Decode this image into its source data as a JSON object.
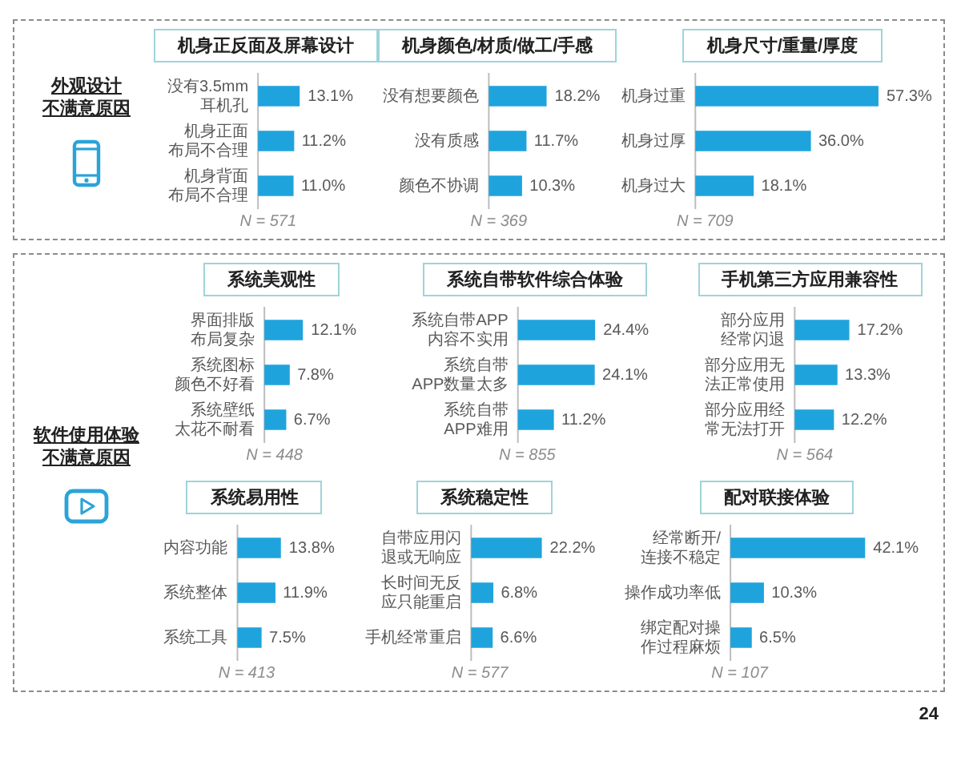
{
  "chart_data": [
    {
      "type": "other",
      "title": "外观设计不满意原因"
    },
    {
      "type": "bar",
      "orientation": "horizontal",
      "title": "机身正反面及屏幕设计",
      "categories": [
        "没有3.5mm耳机孔",
        "机身正面布局不合理",
        "机身背面布局不合理"
      ],
      "values": [
        13.1,
        11.2,
        11.0
      ],
      "value_labels": [
        "13.1%",
        "11.2%",
        "11.0%"
      ],
      "color": "#1fa3dd",
      "tick_labels": "y",
      "annotations": [
        "N = 571"
      ]
    },
    {
      "type": "bar",
      "orientation": "horizontal",
      "title": "机身颜色/材质/做工/手感",
      "categories": [
        "没有想要颜色",
        "没有质感",
        "颜色不协调"
      ],
      "values": [
        18.2,
        11.7,
        10.3
      ],
      "value_labels": [
        "18.2%",
        "11.7%",
        "10.3%"
      ],
      "color": "#1fa3dd",
      "tick_labels": "y",
      "annotations": [
        "N = 369"
      ]
    },
    {
      "type": "bar",
      "orientation": "horizontal",
      "title": "机身尺寸/重量/厚度",
      "categories": [
        "机身过重",
        "机身过厚",
        "机身过大"
      ],
      "values": [
        57.3,
        36.0,
        18.1
      ],
      "value_labels": [
        "57.3%",
        "36.0%",
        "18.1%"
      ],
      "color": "#1fa3dd",
      "tick_labels": "y",
      "annotations": [
        "N = 709"
      ]
    },
    {
      "type": "other",
      "title": "软件使用体验不满意原因"
    },
    {
      "type": "bar",
      "orientation": "horizontal",
      "title": "系统美观性",
      "categories": [
        "界面排版布局复杂",
        "系统图标颜色不好看",
        "系统壁纸太花不耐看"
      ],
      "values": [
        12.1,
        7.8,
        6.7
      ],
      "value_labels": [
        "12.1%",
        "7.8%",
        "6.7%"
      ],
      "color": "#1fa3dd",
      "tick_labels": "y",
      "annotations": [
        "N = 448"
      ]
    },
    {
      "type": "bar",
      "orientation": "horizontal",
      "title": "系统自带软件综合体验",
      "categories": [
        "系统自带APP内容不实用",
        "系统自带APP数量太多",
        "系统自带APP难用"
      ],
      "values": [
        24.4,
        24.1,
        11.2
      ],
      "value_labels": [
        "24.4%",
        "24.1%",
        "11.2%"
      ],
      "color": "#1fa3dd",
      "tick_labels": "y",
      "annotations": [
        "N = 855"
      ]
    },
    {
      "type": "bar",
      "orientation": "horizontal",
      "title": "手机第三方应用兼容性",
      "categories": [
        "部分应用经常闪退",
        "部分应用无法正常使用",
        "部分应用经常无法打开"
      ],
      "values": [
        17.2,
        13.3,
        12.2
      ],
      "value_labels": [
        "17.2%",
        "13.3%",
        "12.2%"
      ],
      "color": "#1fa3dd",
      "tick_labels": "y",
      "annotations": [
        "N = 564"
      ]
    },
    {
      "type": "bar",
      "orientation": "horizontal",
      "title": "系统易用性",
      "categories": [
        "内容功能",
        "系统整体",
        "系统工具"
      ],
      "values": [
        13.8,
        11.9,
        7.5
      ],
      "value_labels": [
        "13.8%",
        "11.9%",
        "7.5%"
      ],
      "color": "#1fa3dd",
      "tick_labels": "y",
      "annotations": [
        "N = 413"
      ]
    },
    {
      "type": "bar",
      "orientation": "horizontal",
      "title": "系统稳定性",
      "categories": [
        "自带应用闪退或无响应",
        "长时间无反应只能重启",
        "手机经常重启"
      ],
      "values": [
        22.2,
        6.8,
        6.6
      ],
      "value_labels": [
        "22.2%",
        "6.8%",
        "6.6%"
      ],
      "color": "#1fa3dd",
      "tick_labels": "y",
      "annotations": [
        "N = 577"
      ]
    },
    {
      "type": "bar",
      "orientation": "horizontal",
      "title": "配对联接体验",
      "categories": [
        "经常断开/连接不稳定",
        "操作成功率低",
        "绑定配对操作过程麻烦"
      ],
      "values": [
        42.1,
        10.3,
        6.5
      ],
      "value_labels": [
        "42.1%",
        "10.3%",
        "6.5%"
      ],
      "color": "#1fa3dd",
      "tick_labels": "y",
      "annotations": [
        "N = 107"
      ]
    },
    {
      "type": "other",
      "annotations": [
        "24"
      ]
    }
  ]
}
